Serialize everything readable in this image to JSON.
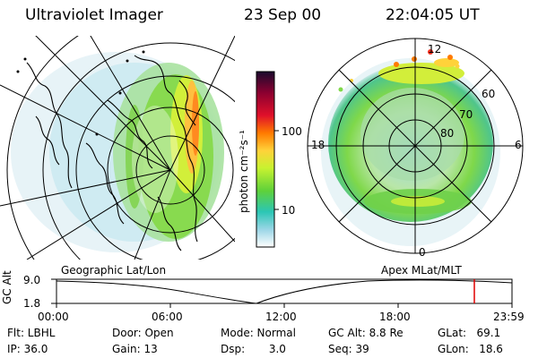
{
  "header": {
    "instrument": "Ultraviolet Imager",
    "date": "23 Sep 00",
    "time": "22:04:05 UT"
  },
  "panels": {
    "left_caption": "Geographic Lat/Lon",
    "right_caption": "Apex MLat/MLT"
  },
  "colorbar": {
    "unit_label": "photon cm⁻²s⁻¹",
    "ticks": [
      "100",
      "10"
    ],
    "colors": [
      "#1a0a2e",
      "#8b0030",
      "#e0102a",
      "#ff7a00",
      "#ffd23a",
      "#c8f230",
      "#5ed13a",
      "#2bc6b5",
      "#9ad6e6",
      "#ffffff"
    ]
  },
  "polar": {
    "lat_labels": [
      "60",
      "70",
      "80"
    ],
    "mlt_labels": {
      "top": "12",
      "bottom": "0",
      "left": "18",
      "right": "6"
    }
  },
  "altitude_plot": {
    "axis_label": "GC Alt",
    "y_ticks": [
      "9.0",
      "1.8"
    ],
    "x_ticks": [
      "00:00",
      "06:00",
      "12:00",
      "18:00",
      "23:59"
    ],
    "marker_color": "#e00000"
  },
  "info": {
    "flt": "Flt: LBHL",
    "ip": "IP: 36.0",
    "door": "Door: Open",
    "gain": "Gain: 13",
    "mode": "Mode: Normal",
    "dsp": "Dsp:       3.0",
    "gc_alt": "GC Alt: 8.8 Re",
    "seq": "Seq: 39",
    "glat": "GLat:   69.1",
    "glon": "GLon:   18.6"
  }
}
